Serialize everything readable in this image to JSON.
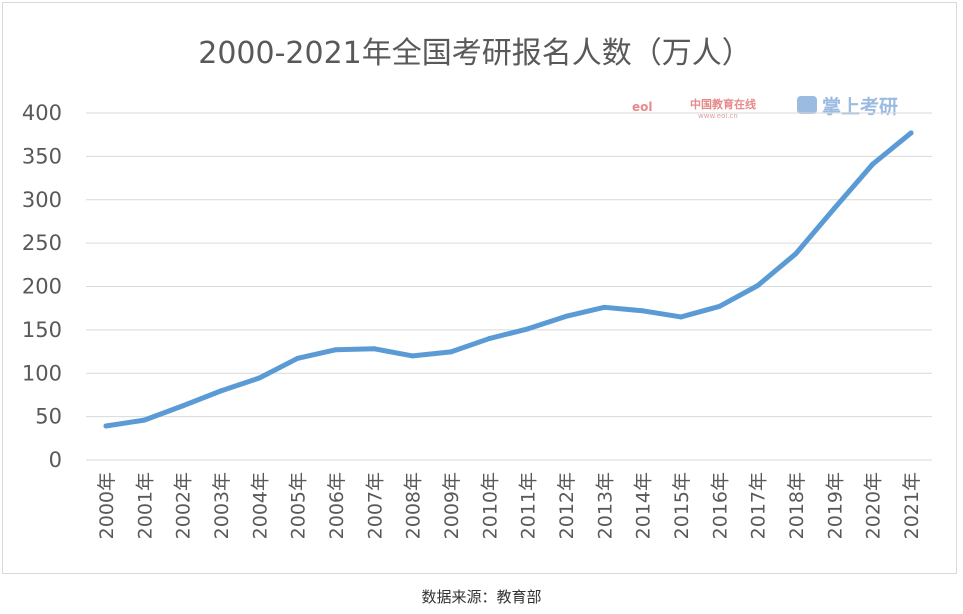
{
  "source_note": "数据来源：教育部",
  "watermark": {
    "logo_text": "eol",
    "site_name": "中国教育在线",
    "site_url": "www.eol.cn",
    "brand": "掌上考研",
    "brand_color": "#9bbbe0"
  },
  "chart_data": {
    "type": "line",
    "title": "2000-2021年全国考研报名人数（万人）",
    "xlabel": "",
    "ylabel": "",
    "categories": [
      "2000年",
      "2001年",
      "2002年",
      "2003年",
      "2004年",
      "2005年",
      "2006年",
      "2007年",
      "2008年",
      "2009年",
      "2010年",
      "2011年",
      "2012年",
      "2013年",
      "2014年",
      "2015年",
      "2016年",
      "2017年",
      "2018年",
      "2019年",
      "2020年",
      "2021年"
    ],
    "series": [
      {
        "values": [
          39.2,
          46,
          62.4,
          79.7,
          94.5,
          117.2,
          127.12,
          128.2,
          120,
          124.6,
          140,
          151.1,
          165.6,
          176,
          172,
          164.9,
          177,
          201,
          238,
          290,
          341,
          377
        ],
        "color": "#5b9bd5"
      }
    ],
    "yticks": [
      "0",
      "50",
      "100",
      "150",
      "200",
      "250",
      "300",
      "350",
      "400"
    ],
    "ylim": [
      0,
      400
    ],
    "grid": true,
    "legend": "none"
  }
}
